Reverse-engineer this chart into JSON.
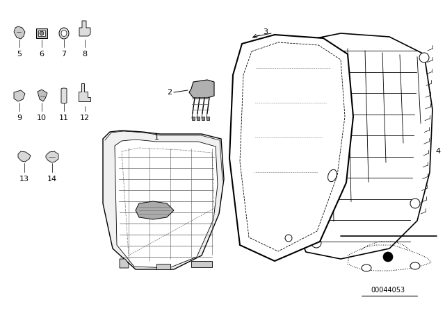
{
  "bg_color": "#ffffff",
  "fig_width": 6.4,
  "fig_height": 4.48,
  "dpi": 100,
  "text_color": "#000000",
  "label_fontsize": 8,
  "part_number_text": "00044053",
  "line_color": "#000000",
  "gray": "#888888",
  "darkgray": "#444444"
}
